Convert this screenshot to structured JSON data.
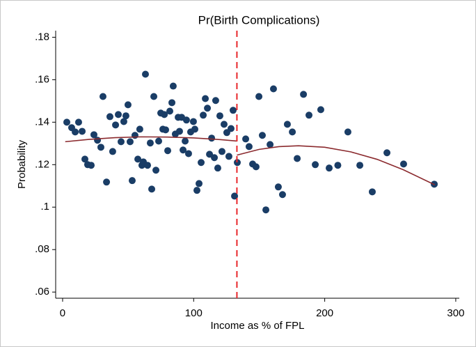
{
  "chart_data": {
    "type": "scatter",
    "title": "Pr(Birth Complications)",
    "x_label": "Income as % of FPL",
    "y_label": "Probability",
    "xlim": [
      -5.3,
      302.7
    ],
    "ylim": [
      0.0571,
      0.1831
    ],
    "xticks": [
      0,
      100,
      200,
      300
    ],
    "yticks": [
      {
        "value": 0.06,
        "label": ".06"
      },
      {
        "value": 0.08,
        "label": ".08"
      },
      {
        "value": 0.1,
        "label": ".1"
      },
      {
        "value": 0.12,
        "label": ".12"
      },
      {
        "value": 0.14,
        "label": ".14"
      },
      {
        "value": 0.16,
        "label": ".16"
      },
      {
        "value": 0.18,
        "label": ".18"
      }
    ],
    "cutoff": {
      "x": 133,
      "color": "#e8262b"
    },
    "series": [
      {
        "type": "scatter",
        "color": "#1a3d66",
        "x": [
          3.2,
          6.9,
          9.6,
          12.2,
          14.9,
          17,
          19.1,
          21.8,
          23.9,
          26.6,
          29.2,
          30.8,
          33.5,
          36.1,
          38.2,
          40.4,
          42.5,
          44.6,
          46.7,
          48.3,
          49.9,
          51.5,
          53.1,
          55.2,
          57.4,
          58.9,
          60.5,
          61.6,
          63.2,
          64.8,
          66.9,
          68,
          69.6,
          71.2,
          73.3,
          74.9,
          76.5,
          77.6,
          78.6,
          80.2,
          81.8,
          83.4,
          84.4,
          86,
          88.2,
          89.2,
          90.8,
          91.9,
          93.5,
          94.5,
          96.1,
          97.7,
          99.8,
          100.9,
          102.5,
          104.1,
          105.7,
          107.3,
          108.9,
          110.5,
          112.1,
          113.7,
          115.8,
          116.8,
          118.4,
          120,
          121.6,
          123.2,
          125.3,
          126.9,
          128.5,
          130.1,
          131.2,
          133.3,
          139.7,
          142.3,
          145,
          147.6,
          149.8,
          152.4,
          155.1,
          158.3,
          160.9,
          164.6,
          167.8,
          171.5,
          175.3,
          179,
          183.8,
          188,
          192.8,
          197,
          203.4,
          210,
          217.7,
          226.8,
          236.3,
          247.5,
          260.2,
          283.6
        ],
        "values": [
          0.14,
          0.1374,
          0.1354,
          0.14,
          0.1357,
          0.1226,
          0.12,
          0.1197,
          0.1341,
          0.1315,
          0.1282,
          0.1521,
          0.1118,
          0.1426,
          0.1262,
          0.1387,
          0.1436,
          0.1308,
          0.1403,
          0.143,
          0.1482,
          0.1308,
          0.1125,
          0.1338,
          0.1226,
          0.1367,
          0.1197,
          0.1213,
          0.1626,
          0.1197,
          0.1302,
          0.1085,
          0.1521,
          0.1174,
          0.1311,
          0.1443,
          0.1367,
          0.1436,
          0.1364,
          0.1266,
          0.1452,
          0.1492,
          0.157,
          0.1344,
          0.1423,
          0.1357,
          0.1423,
          0.1269,
          0.1311,
          0.141,
          0.1252,
          0.1354,
          0.1403,
          0.1367,
          0.1079,
          0.1111,
          0.121,
          0.1433,
          0.1511,
          0.1466,
          0.1249,
          0.1325,
          0.1233,
          0.1502,
          0.1184,
          0.143,
          0.1262,
          0.139,
          0.1351,
          0.1239,
          0.137,
          0.1456,
          0.1052,
          0.121,
          0.1321,
          0.1285,
          0.1203,
          0.119,
          0.1521,
          0.1338,
          0.0987,
          0.1295,
          0.1557,
          0.1095,
          0.1059,
          0.139,
          0.1354,
          0.1229,
          0.1531,
          0.1433,
          0.12,
          0.1459,
          0.1184,
          0.1197,
          0.1354,
          0.1197,
          0.1072,
          0.1256,
          0.1203,
          0.1108
        ]
      },
      {
        "type": "line",
        "color": "#8b2a2e",
        "x": [
          2,
          20,
          40,
          60,
          80,
          100,
          120,
          133
        ],
        "values": [
          0.1308,
          0.1319,
          0.1327,
          0.1331,
          0.133,
          0.1326,
          0.1318,
          0.1311
        ]
      },
      {
        "type": "line",
        "color": "#8b2a2e",
        "x": [
          133,
          150,
          165,
          180,
          200,
          220,
          240,
          260,
          284
        ],
        "values": [
          0.1245,
          0.1272,
          0.1285,
          0.1289,
          0.1282,
          0.126,
          0.1225,
          0.1176,
          0.1105
        ]
      }
    ]
  }
}
